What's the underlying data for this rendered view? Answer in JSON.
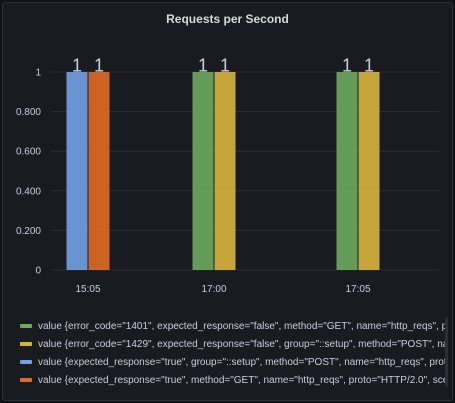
{
  "panel": {
    "title": "Requests per Second"
  },
  "colors": {
    "background": "#181b1f",
    "grid": "#2c2f36",
    "text": "#ccccdc",
    "blue": "#73a1e6",
    "orange": "#e06b22",
    "green": "#6cab5d",
    "yellow": "#d9b53b"
  },
  "chart_data": {
    "type": "bar",
    "categories": [
      "15:05",
      "17:00",
      "17:05"
    ],
    "ylim": [
      0,
      1
    ],
    "yticks": [
      "0",
      "0.200",
      "0.400",
      "0.600",
      "0.800",
      "1"
    ],
    "grid": true,
    "legend_position": "bottom",
    "show_values": true,
    "series": [
      {
        "name": "value {error_code=\"1401\", expected_response=\"false\", method=\"GET\", name=\"http_reqs\", proto",
        "color": "#6cab5d",
        "values": [
          null,
          1,
          1
        ]
      },
      {
        "name": "value {error_code=\"1429\", expected_response=\"false\", group=\"::setup\", method=\"POST\", name",
        "color": "#d9b53b",
        "values": [
          null,
          1,
          1
        ]
      },
      {
        "name": "value {expected_response=\"true\", group=\"::setup\", method=\"POST\", name=\"http_reqs\", proto=\"",
        "color": "#73a1e6",
        "values": [
          1,
          null,
          null
        ]
      },
      {
        "name": "value {expected_response=\"true\", method=\"GET\", name=\"http_reqs\", proto=\"HTTP/2.0\", scenar",
        "color": "#e06b22",
        "values": [
          1,
          null,
          null
        ]
      }
    ]
  },
  "legend": {
    "items": [
      {
        "label": "value {error_code=\"1401\", expected_response=\"false\", method=\"GET\", name=\"http_reqs\", proto",
        "color": "#6cab5d"
      },
      {
        "label": "value {error_code=\"1429\", expected_response=\"false\", group=\"::setup\", method=\"POST\", name",
        "color": "#d9b53b"
      },
      {
        "label": "value {expected_response=\"true\", group=\"::setup\", method=\"POST\", name=\"http_reqs\", proto=\"",
        "color": "#73a1e6"
      },
      {
        "label": "value {expected_response=\"true\", method=\"GET\", name=\"http_reqs\", proto=\"HTTP/2.0\", scenar",
        "color": "#e06b22"
      }
    ]
  }
}
